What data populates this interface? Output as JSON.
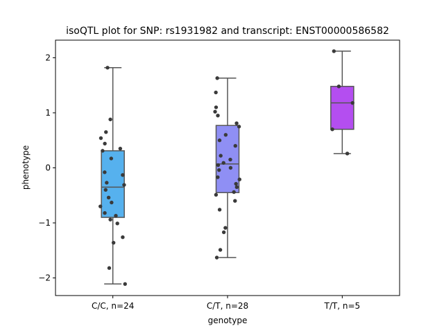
{
  "chart_data": {
    "type": "box",
    "title": "isoQTL plot for SNP: rs1931982 and transcript: ENST00000586582",
    "xlabel": "genotype",
    "ylabel": "phenotype",
    "ylim": [
      -2.32,
      2.32
    ],
    "yticks": [
      -2,
      -1,
      0,
      1,
      2
    ],
    "yticklabels": [
      "−2",
      "−1",
      "0",
      "1",
      "2"
    ],
    "grid": false,
    "groups": [
      {
        "label": "C/C, n=24",
        "color": "#56b1ee",
        "box": {
          "whisker_low": -2.11,
          "q1": -0.9,
          "median": -0.35,
          "q3": 0.31,
          "whisker_high": 1.82
        },
        "points": [
          1.82,
          0.88,
          0.65,
          0.54,
          0.44,
          0.35,
          0.31,
          0.17,
          -0.08,
          -0.13,
          -0.27,
          -0.31,
          -0.4,
          -0.54,
          -0.63,
          -0.7,
          -0.82,
          -0.87,
          -0.94,
          -1.01,
          -1.26,
          -1.36,
          -1.82,
          -2.11
        ]
      },
      {
        "label": "C/T, n=28",
        "color": "#8f8ff4",
        "box": {
          "whisker_low": -1.63,
          "q1": -0.45,
          "median": 0.07,
          "q3": 0.77,
          "whisker_high": 1.63
        },
        "points": [
          1.63,
          1.37,
          1.1,
          1.02,
          0.95,
          0.81,
          0.75,
          0.6,
          0.5,
          0.4,
          0.22,
          0.15,
          0.09,
          0.05,
          0.0,
          -0.04,
          -0.17,
          -0.21,
          -0.29,
          -0.35,
          -0.44,
          -0.49,
          -0.6,
          -0.76,
          -1.09,
          -1.17,
          -1.49,
          -1.63
        ]
      },
      {
        "label": "T/T, n=5",
        "color": "#b44ef0",
        "box": {
          "whisker_low": 0.26,
          "q1": 0.7,
          "median": 1.18,
          "q3": 1.48,
          "whisker_high": 2.12
        },
        "points": [
          2.12,
          1.48,
          1.18,
          0.7,
          0.26
        ]
      }
    ]
  }
}
